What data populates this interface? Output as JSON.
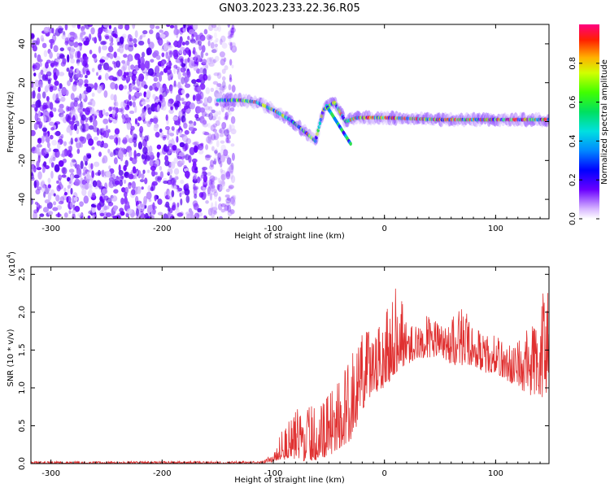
{
  "title": "GN03.2023.233.22.36.R05",
  "colors": {
    "snr_line": "#e03030",
    "specgram_bg": "#ffffff"
  },
  "chart_data": [
    {
      "type": "heatmap",
      "name": "spectrogram",
      "xlabel": "Height of straight line (km)",
      "ylabel": "Frequency (Hz)",
      "xlim": [
        -318,
        148
      ],
      "ylim": [
        -50,
        50
      ],
      "xticks": [
        -300,
        -200,
        -100,
        0,
        100
      ],
      "yticks": [
        -40,
        -20,
        0,
        20,
        40
      ],
      "description_points": [
        {
          "x": -150,
          "y": 11
        },
        {
          "x": -130,
          "y": 11
        },
        {
          "x": -115,
          "y": 10
        },
        {
          "x": -100,
          "y": 6
        },
        {
          "x": -85,
          "y": 1
        },
        {
          "x": -70,
          "y": -6
        },
        {
          "x": -62,
          "y": -10
        },
        {
          "x": -55,
          "y": 6
        },
        {
          "x": -45,
          "y": 10
        },
        {
          "x": -35,
          "y": 0
        },
        {
          "x": -25,
          "y": 2
        },
        {
          "x": 0,
          "y": 2
        },
        {
          "x": 50,
          "y": 1
        },
        {
          "x": 100,
          "y": 1
        },
        {
          "x": 148,
          "y": 1
        }
      ],
      "noise_region_x": [
        -318,
        -135
      ],
      "colorbar": {
        "label": "Normalized spectral amplitude",
        "ticks": [
          "0.0",
          "0.2",
          "0.4",
          "0.6",
          "0.8"
        ],
        "range": [
          0,
          1
        ]
      }
    },
    {
      "type": "line",
      "name": "snr",
      "xlabel": "Height of straight line (km)",
      "ylabel": "SNR (10 * v/v)",
      "multiplier_label": "(x10",
      "multiplier_exp": "4",
      "xlim": [
        -318,
        148
      ],
      "ylim": [
        0,
        2.6
      ],
      "xticks": [
        -300,
        -200,
        -100,
        0,
        100
      ],
      "yticks": [
        "0.0",
        "0.5",
        "1.0",
        "1.5",
        "2.0",
        "2.5"
      ],
      "envelope": {
        "x": [
          -318,
          -110,
          -100,
          -90,
          -80,
          -70,
          -60,
          -50,
          -40,
          -30,
          -20,
          -10,
          0,
          10,
          20,
          30,
          40,
          50,
          60,
          70,
          80,
          90,
          100,
          110,
          120,
          130,
          140,
          148
        ],
        "low": [
          0.0,
          0.0,
          0.02,
          0.05,
          0.05,
          0.03,
          0.05,
          0.1,
          0.2,
          0.3,
          0.7,
          0.9,
          1.0,
          1.2,
          1.3,
          1.4,
          1.4,
          1.4,
          1.3,
          1.3,
          1.3,
          1.2,
          1.2,
          1.1,
          1.0,
          0.9,
          0.9,
          0.7
        ],
        "high": [
          0.03,
          0.03,
          0.15,
          0.5,
          0.7,
          0.8,
          0.7,
          0.9,
          1.1,
          1.4,
          1.8,
          1.7,
          1.9,
          2.45,
          1.9,
          1.8,
          2.0,
          1.8,
          1.9,
          2.1,
          1.8,
          1.7,
          1.7,
          1.6,
          1.6,
          1.8,
          2.1,
          2.55
        ]
      }
    }
  ]
}
